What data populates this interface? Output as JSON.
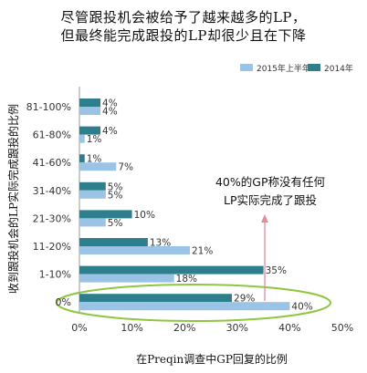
{
  "title_line1": "尽管跟投机会被给予了越来越多的LP，",
  "title_line2": "但最终能完成跟投的LP却很少且在下降",
  "colors": {
    "light": "#9ac3e6",
    "dark": "#2e7f8e",
    "axis": "#999999",
    "ellipse": "#8dc63f",
    "arrow": "#e48a98"
  },
  "chart_data": {
    "type": "bar",
    "orientation": "horizontal",
    "categories": [
      "81-100%",
      "61-80%",
      "41-60%",
      "31-40%",
      "21-30%",
      "11-20%",
      "1-10%",
      "0%"
    ],
    "series": [
      {
        "name": "2014年",
        "values": [
          4,
          4,
          1,
          5,
          10,
          13,
          35,
          29
        ],
        "labels": [
          "4%",
          "4%",
          "1%",
          "5%",
          "10%",
          "13%",
          "35%",
          "29%"
        ]
      },
      {
        "name": "2015年上半年",
        "values": [
          4,
          1,
          7,
          5,
          5,
          21,
          18,
          40
        ],
        "labels": [
          "4%",
          "1%",
          "7%",
          "5%",
          "5%",
          "21%",
          "18%",
          "40%"
        ]
      }
    ],
    "xlim": [
      0,
      50
    ],
    "xticks": [
      "0%",
      "10%",
      "20%",
      "30%",
      "40%",
      "50%"
    ],
    "xlabel": "在Preqin调查中GP回复的比例",
    "ylabel": "收到跟投机会的LP实际完成跟投的比例",
    "legend": [
      "2015年上半年",
      "2014年"
    ],
    "annotation_line1": "40%的GP称没有任何",
    "annotation_line2": "LP实际完成了跟投"
  }
}
